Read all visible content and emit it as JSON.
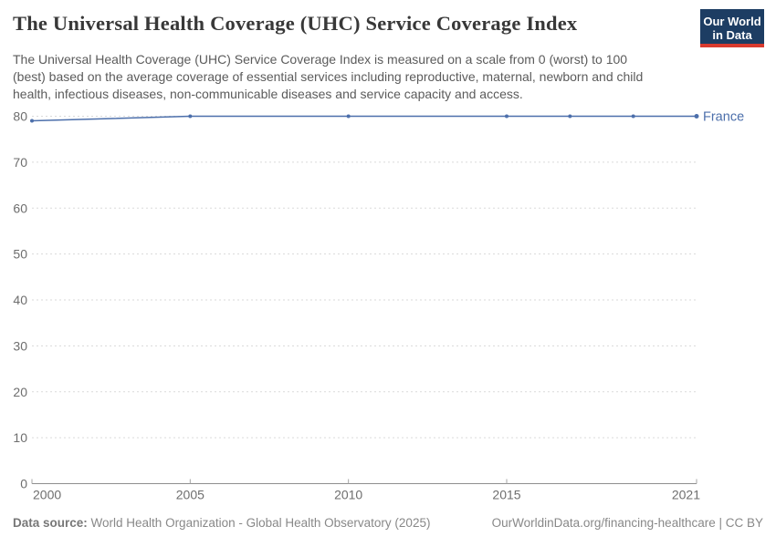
{
  "header": {
    "title": "The Universal Health Coverage (UHC) Service Coverage Index",
    "subtitle": "The Universal Health Coverage (UHC) Service Coverage Index is measured on a scale from 0 (worst) to 100 (best) based on the average coverage of essential services including reproductive, maternal, newborn and child health, infectious diseases, non-communicable diseases and service capacity and access.",
    "logo": {
      "line1": "Our World",
      "line2": "in Data",
      "bg_color": "#1d3d63",
      "accent_color": "#d93a2e"
    }
  },
  "chart_data": {
    "type": "line",
    "title": "The Universal Health Coverage (UHC) Service Coverage Index",
    "xlabel": "",
    "ylabel": "",
    "xlim": [
      2000,
      2021
    ],
    "ylim": [
      0,
      80
    ],
    "x_ticks": [
      2000,
      2005,
      2010,
      2015,
      2021
    ],
    "y_ticks": [
      0,
      10,
      20,
      30,
      40,
      50,
      60,
      70,
      80
    ],
    "grid": "horizontal-dashed",
    "legend_position": "end-of-line",
    "series": [
      {
        "name": "France",
        "color": "#4c6fab",
        "points": [
          {
            "x": 2000,
            "y": 79
          },
          {
            "x": 2005,
            "y": 80
          },
          {
            "x": 2010,
            "y": 80
          },
          {
            "x": 2015,
            "y": 80
          },
          {
            "x": 2017,
            "y": 80
          },
          {
            "x": 2019,
            "y": 80
          },
          {
            "x": 2021,
            "y": 80
          }
        ]
      }
    ]
  },
  "footer": {
    "source_label": "Data source:",
    "source_text": " World Health Organization - Global Health Observatory (2025)",
    "right_text": "OurWorldinData.org/financing-healthcare | CC BY"
  }
}
